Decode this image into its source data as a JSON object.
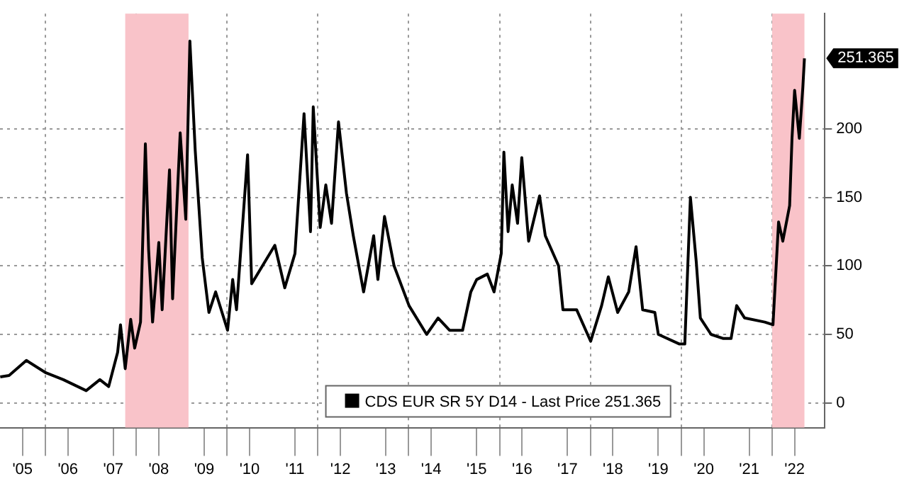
{
  "chart_data": {
    "type": "line",
    "xlim": [
      "2005-01-01",
      "2023-03-01"
    ],
    "ylim": [
      -18,
      284
    ],
    "xticks": [
      {
        "value": "2005-07-01",
        "label": "'05"
      },
      {
        "value": "2006-01-01",
        "label": null
      },
      {
        "value": "2006-07-01",
        "label": "'06"
      },
      {
        "value": "2007-07-01",
        "label": "'07"
      },
      {
        "value": "2008-01-01",
        "label": null
      },
      {
        "value": "2008-07-01",
        "label": "'08"
      },
      {
        "value": "2009-07-01",
        "label": "'09"
      },
      {
        "value": "2010-01-01",
        "label": null
      },
      {
        "value": "2010-07-01",
        "label": "'10"
      },
      {
        "value": "2011-07-01",
        "label": "'11"
      },
      {
        "value": "2012-01-01",
        "label": null
      },
      {
        "value": "2012-07-01",
        "label": "'12"
      },
      {
        "value": "2013-07-01",
        "label": "'13"
      },
      {
        "value": "2014-01-01",
        "label": null
      },
      {
        "value": "2014-07-01",
        "label": "'14"
      },
      {
        "value": "2015-07-01",
        "label": "'15"
      },
      {
        "value": "2016-01-01",
        "label": null
      },
      {
        "value": "2016-07-01",
        "label": "'16"
      },
      {
        "value": "2017-07-01",
        "label": "'17"
      },
      {
        "value": "2018-01-01",
        "label": null
      },
      {
        "value": "2018-07-01",
        "label": "'18"
      },
      {
        "value": "2019-07-01",
        "label": "'19"
      },
      {
        "value": "2020-01-01",
        "label": null
      },
      {
        "value": "2020-07-01",
        "label": "'20"
      },
      {
        "value": "2021-07-01",
        "label": "'21"
      },
      {
        "value": "2022-01-01",
        "label": null
      },
      {
        "value": "2022-07-01",
        "label": "'22"
      }
    ],
    "yticks": [
      0,
      50,
      100,
      150,
      200
    ],
    "grid": true,
    "legend": "bottom",
    "marker": "none",
    "line_style": "solid",
    "bands": [
      {
        "axis": "x",
        "from": "2007-10-05",
        "to": "2009-02-25",
        "color": "#f9c3c9"
      },
      {
        "axis": "x",
        "from": "2022-01-01",
        "to": "2022-09-18",
        "color": "#f9c3c9"
      }
    ],
    "annotations": [
      {
        "text": "251.365",
        "x": "2022-09-18",
        "y": 251.365
      }
    ],
    "series": [
      {
        "name": "CDS EUR SR 5Y D14 - Last Price 251.365",
        "color": "#000000",
        "x": [
          "2005-01-03",
          "2005-03-15",
          "2005-08-01",
          "2006-01-05",
          "2006-05-25",
          "2006-11-25",
          "2007-03-15",
          "2007-05-25",
          "2007-08-05",
          "2007-08-28",
          "2007-10-05",
          "2007-11-18",
          "2007-12-20",
          "2008-02-05",
          "2008-03-15",
          "2008-04-10",
          "2008-05-12",
          "2008-07-01",
          "2008-07-28",
          "2008-09-25",
          "2008-10-20",
          "2008-12-20",
          "2009-02-03",
          "2009-03-08",
          "2009-04-20",
          "2009-06-15",
          "2009-08-08",
          "2009-10-01",
          "2010-01-05",
          "2010-02-15",
          "2010-03-18",
          "2010-06-15",
          "2010-07-18",
          "2011-01-20",
          "2011-04-10",
          "2011-07-01",
          "2011-09-12",
          "2011-11-03",
          "2011-11-25",
          "2012-01-20",
          "2012-03-05",
          "2012-04-20",
          "2012-06-15",
          "2012-08-18",
          "2012-10-12",
          "2013-01-03",
          "2013-03-25",
          "2013-04-28",
          "2013-06-20",
          "2013-09-05",
          "2014-01-03",
          "2014-05-25",
          "2014-08-25",
          "2014-11-25",
          "2015-03-10",
          "2015-05-15",
          "2015-07-01",
          "2015-09-25",
          "2015-11-18",
          "2016-01-15",
          "2016-02-05",
          "2016-03-10",
          "2016-04-12",
          "2016-05-25",
          "2016-06-28",
          "2016-08-22",
          "2016-11-18",
          "2017-01-03",
          "2017-04-20",
          "2017-05-25",
          "2017-09-12",
          "2018-01-03",
          "2018-04-01",
          "2018-05-25",
          "2018-08-08",
          "2018-11-05",
          "2019-01-03",
          "2019-02-25",
          "2019-06-03",
          "2019-07-01",
          "2019-12-18",
          "2020-01-30",
          "2020-03-15",
          "2020-05-01",
          "2020-06-03",
          "2020-08-28",
          "2020-12-05",
          "2021-02-05",
          "2021-03-22",
          "2021-05-25",
          "2021-11-03",
          "2022-01-08",
          "2022-02-22",
          "2022-03-28",
          "2022-05-22",
          "2022-06-10",
          "2022-07-01",
          "2022-08-08",
          "2022-09-05",
          "2022-09-18"
        ],
        "values": [
          19,
          20,
          31,
          22,
          17,
          9,
          17,
          12,
          37,
          57,
          25,
          61,
          40,
          59,
          189,
          112,
          59,
          117,
          68,
          170,
          76,
          197,
          134,
          264,
          184,
          106,
          66,
          81,
          53,
          90,
          68,
          181,
          87,
          115,
          84,
          109,
          211,
          125,
          216,
          128,
          159,
          131,
          205,
          153,
          122,
          81,
          122,
          90,
          136,
          100,
          71,
          50,
          62,
          53,
          53,
          81,
          90,
          94,
          81,
          109,
          183,
          125,
          159,
          131,
          179,
          118,
          151,
          122,
          100,
          68,
          68,
          45,
          71,
          92,
          66,
          81,
          114,
          68,
          66,
          50,
          43,
          43,
          150,
          103,
          62,
          50,
          47,
          47,
          71,
          62,
          59,
          57,
          132,
          118,
          144,
          193,
          228,
          193,
          230,
          251.365
        ]
      }
    ]
  }
}
